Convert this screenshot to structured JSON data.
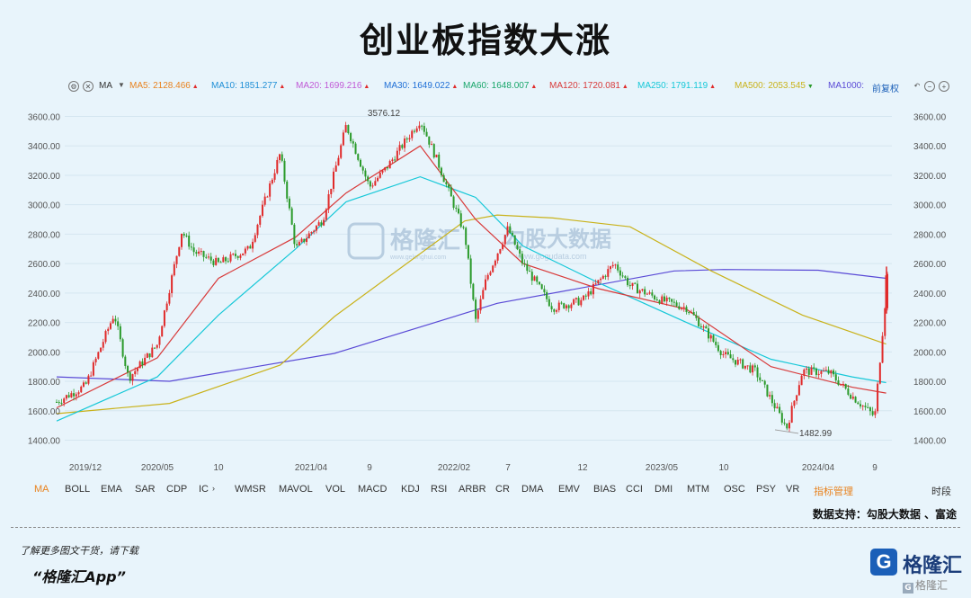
{
  "page": {
    "title": "创业板指数大涨",
    "ma_indicators": [
      {
        "label": "MA5: 2128.466",
        "dir": "up",
        "color": "#e8821e"
      },
      {
        "label": "MA10: 1851.277",
        "dir": "up",
        "color": "#1f8fd6"
      },
      {
        "label": "MA20: 1699.216",
        "dir": "up",
        "color": "#c05ad6"
      },
      {
        "label": "MA30: 1649.022",
        "dir": "up",
        "color": "#1f6fd6"
      },
      {
        "label": "MA60: 1648.007",
        "dir": "up",
        "color": "#18a66a"
      },
      {
        "label": "MA120: 1720.081",
        "dir": "up",
        "color": "#d83a3a"
      },
      {
        "label": "MA250: 1791.119",
        "dir": "up",
        "color": "#17c8d8"
      },
      {
        "label": "MA500: 2053.545",
        "dir": "down",
        "color": "#c9b21a"
      },
      {
        "label": "MA1000:",
        "dir": "",
        "color": "#5a4ad6"
      }
    ],
    "toolbar_left": {
      "ma_label": "MA"
    },
    "toolbar_right": {
      "restore_label": "前复权"
    },
    "indicator_tabs": [
      "MA",
      "BOLL",
      "EMA",
      "SAR",
      "CDP",
      "IC",
      "WMSR",
      "MAVOL",
      "VOL",
      "MACD",
      "KDJ",
      "RSI",
      "ARBR",
      "CR",
      "DMA",
      "EMV",
      "BIAS",
      "CCI",
      "DMI",
      "MTM",
      "OSC",
      "PSY",
      "VR"
    ],
    "indicator_manage": "指标管理",
    "time_share": "时段",
    "support_text": "数据支持：勾股大数据 、富途",
    "footer": {
      "line1": "了解更多图文干货，请下载",
      "line2": "“格隆汇App”"
    },
    "logo_text": "格隆汇",
    "logo_mark": "G",
    "watermark_main": "格隆汇",
    "watermark_sub": "www.gelonghui.com",
    "watermark2_main": "勾股大数据",
    "watermark2_sub": "www.gogudata.com",
    "small_watermark": "格隆汇",
    "colors": {
      "up": "#e02a2a",
      "down": "#2a9a2a",
      "bg": "#e8f4fb",
      "active_tab": "#e8821e"
    }
  },
  "chart_data": {
    "type": "line",
    "title": "创业板指数大涨",
    "y_ticks": [
      "3600.00",
      "3400.00",
      "3200.00",
      "3000.00",
      "2800.00",
      "2600.00",
      "2400.00",
      "2200.00",
      "2000.00",
      "1800.00",
      "1600.00",
      "1400.00"
    ],
    "ylim": [
      1320,
      3660
    ],
    "x_ticks": [
      "2019/12",
      "2020/05",
      "10",
      "2021/04",
      "9",
      "2022/02",
      "7",
      "12",
      "2023/05",
      "10",
      "2024/04",
      "9"
    ],
    "annotations": [
      {
        "text": "3576.12",
        "date": "2021/12",
        "value": 3576.12
      },
      {
        "text": "1482.99",
        "date": "2024/02",
        "value": 1482.99
      }
    ],
    "series": [
      {
        "id": "price",
        "dates": [
          "2019/10",
          "2019/12",
          "2020/02",
          "2020/03",
          "2020/05",
          "2020/07",
          "2020/08",
          "2020/10",
          "2020/12",
          "2021/02",
          "2021/03",
          "2021/05",
          "2021/07",
          "2021/09",
          "2021/10",
          "2021/12",
          "2022/01",
          "2022/03",
          "2022/04",
          "2022/05",
          "2022/07",
          "2022/08",
          "2022/10",
          "2022/12",
          "2023/02",
          "2023/03",
          "2023/05",
          "2023/07",
          "2023/08",
          "2023/10",
          "2023/12",
          "2024/02",
          "2024/03",
          "2024/05",
          "2024/07",
          "2024/09",
          "2024/09b",
          "2024/10"
        ],
        "values": [
          1660,
          1770,
          2260,
          1820,
          2050,
          2820,
          2680,
          2600,
          2700,
          3350,
          2700,
          2900,
          3540,
          3120,
          3250,
          3576,
          3300,
          2800,
          2210,
          2500,
          2840,
          2600,
          2300,
          2350,
          2600,
          2450,
          2350,
          2300,
          2200,
          1980,
          1870,
          1483,
          1870,
          1860,
          1700,
          1560,
          2300,
          2520
        ]
      },
      {
        "name": "MA1000",
        "color": "#5a4ad6",
        "dates": [
          "2019/10",
          "2020/06",
          "2021/06",
          "2022/06",
          "2023/06",
          "2023/10",
          "2024/04",
          "2024/10"
        ],
        "values": [
          1830,
          1800,
          1990,
          2330,
          2550,
          2560,
          2555,
          2500
        ]
      },
      {
        "name": "MA500",
        "color": "#c9b21a",
        "dates": [
          "2019/10",
          "2020/06",
          "2021/02",
          "2021/06",
          "2022/03",
          "2022/06",
          "2022/10",
          "2023/03",
          "2023/09",
          "2024/03",
          "2024/10"
        ],
        "values": [
          1580,
          1650,
          1910,
          2240,
          2890,
          2930,
          2910,
          2850,
          2550,
          2250,
          2053
        ]
      },
      {
        "name": "MA250",
        "color": "#17c8d8",
        "dates": [
          "2019/10",
          "2020/05",
          "2020/10",
          "2021/03",
          "2021/07",
          "2021/12",
          "2022/04",
          "2022/08",
          "2023/01",
          "2023/07",
          "2024/01",
          "2024/07",
          "2024/10"
        ],
        "values": [
          1530,
          1830,
          2250,
          2700,
          3020,
          3190,
          3050,
          2720,
          2470,
          2200,
          1950,
          1830,
          1791
        ]
      },
      {
        "name": "MA120",
        "color": "#d83a3a",
        "dates": [
          "2019/10",
          "2020/05",
          "2020/10",
          "2021/03",
          "2021/07",
          "2021/12",
          "2022/04",
          "2022/08",
          "2023/01",
          "2023/07",
          "2024/01",
          "2024/07",
          "2024/10"
        ],
        "values": [
          1620,
          1960,
          2500,
          2780,
          3080,
          3400,
          2900,
          2600,
          2430,
          2290,
          1900,
          1760,
          1720
        ]
      }
    ]
  }
}
